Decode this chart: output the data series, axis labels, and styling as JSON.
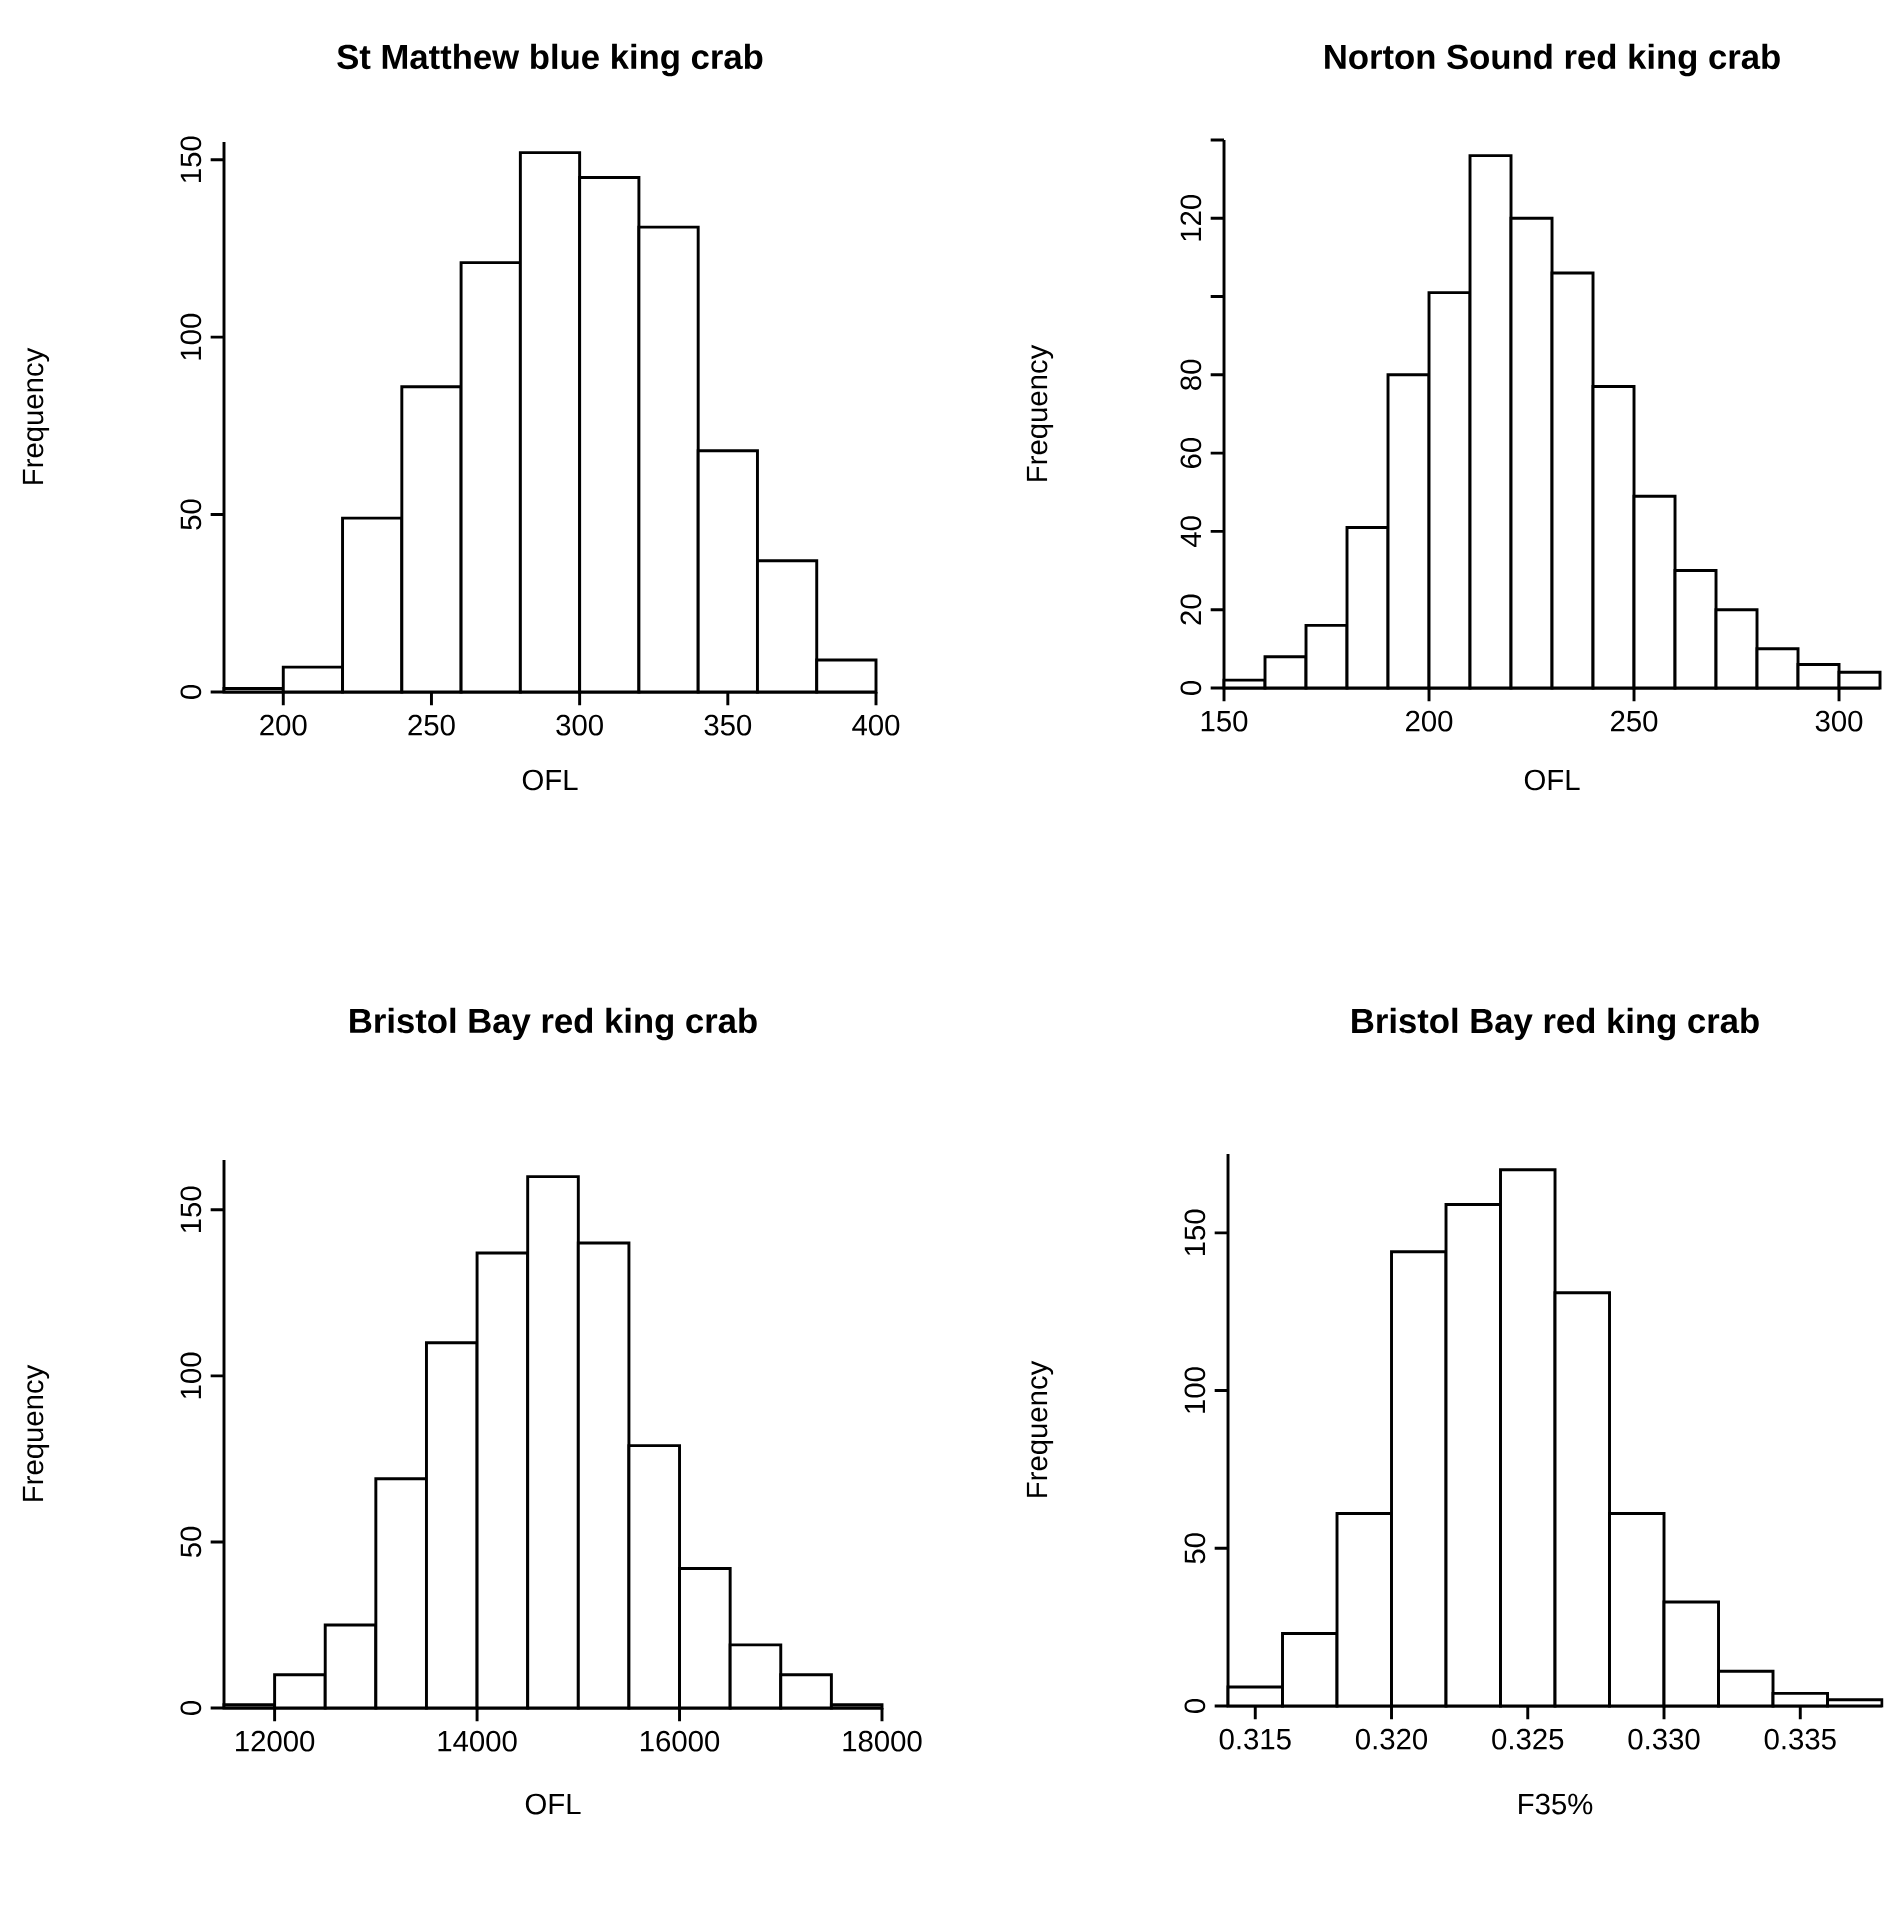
{
  "chart_data": [
    {
      "type": "histogram",
      "title": "St Matthew blue king crab",
      "xlabel": "OFL",
      "ylabel": "Frequency",
      "color": "#ffffff",
      "bins": [
        180,
        200,
        220,
        240,
        260,
        280,
        300,
        320,
        340,
        360,
        380,
        400
      ],
      "values": [
        1,
        7,
        49,
        86,
        121,
        152,
        145,
        131,
        68,
        37,
        9
      ],
      "xlim": [
        180,
        400
      ],
      "xticks": [
        200,
        250,
        300,
        350,
        400
      ],
      "ylim": [
        0,
        155
      ],
      "yticks": [
        0,
        50,
        100,
        150
      ]
    },
    {
      "type": "histogram",
      "title": "Norton Sound red king crab",
      "xlabel": "OFL",
      "ylabel": "Frequency",
      "color": "#ffffff",
      "bins": [
        150,
        160,
        170,
        180,
        190,
        200,
        210,
        220,
        230,
        240,
        250,
        260,
        270,
        280,
        290,
        300,
        310
      ],
      "values": [
        2,
        8,
        16,
        41,
        80,
        101,
        136,
        120,
        106,
        77,
        49,
        30,
        20,
        10,
        6,
        4
      ],
      "xlim": [
        150,
        310
      ],
      "xticks": [
        150,
        200,
        250,
        300
      ],
      "ylim": [
        0,
        140
      ],
      "yticks": [
        0,
        20,
        40,
        60,
        80,
        {
          "value": 100,
          "label": null
        },
        120,
        {
          "value": 140,
          "label": null
        }
      ]
    },
    {
      "type": "histogram",
      "title": "Bristol Bay red king crab",
      "xlabel": "OFL",
      "ylabel": "Frequency",
      "color": "#ffffff",
      "bins": [
        11500,
        12000,
        12500,
        13000,
        13500,
        14000,
        14500,
        15000,
        15500,
        16000,
        16500,
        17000,
        17500,
        18000
      ],
      "values": [
        1,
        10,
        25,
        69,
        110,
        137,
        160,
        140,
        79,
        42,
        19,
        10,
        1
      ],
      "xlim": [
        11500,
        18000
      ],
      "xticks": [
        12000,
        14000,
        16000,
        18000
      ],
      "ylim": [
        0,
        165
      ],
      "yticks": [
        0,
        50,
        100,
        150
      ]
    },
    {
      "type": "histogram",
      "title": "Bristol Bay red king crab",
      "xlabel": "F35%",
      "ylabel": "Frequency",
      "color": "#ffffff",
      "bins": [
        0.314,
        0.316,
        0.318,
        0.32,
        0.322,
        0.324,
        0.326,
        0.328,
        0.33,
        0.332,
        0.334,
        0.336,
        0.338
      ],
      "values": [
        6,
        23,
        61,
        144,
        159,
        170,
        131,
        61,
        33,
        11,
        4,
        2
      ],
      "xlim": [
        0.314,
        0.338
      ],
      "xticks": [
        0.315,
        {
          "value": 0.32,
          "label": "0.320"
        },
        0.325,
        {
          "value": 0.33,
          "label": "0.330"
        },
        0.335
      ],
      "ylim": [
        0,
        175
      ],
      "yticks": [
        0,
        50,
        100,
        150
      ]
    }
  ]
}
